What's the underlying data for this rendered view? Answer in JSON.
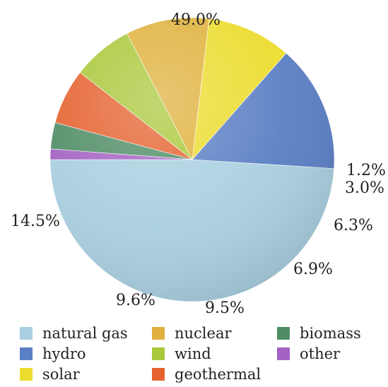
{
  "chart_data": {
    "type": "pie",
    "start": "9 o'clock",
    "direction": "counter-clockwise",
    "slices": [
      {
        "label": "natural gas",
        "value": 49.0,
        "pct_label": "49.0%",
        "color": "#a9cfe0"
      },
      {
        "label": "hydro",
        "value": 14.5,
        "pct_label": "14.5%",
        "color": "#5b7fc4"
      },
      {
        "label": "solar",
        "value": 9.6,
        "pct_label": "9.6%",
        "color": "#ecdc2e"
      },
      {
        "label": "nuclear",
        "value": 9.5,
        "pct_label": "9.5%",
        "color": "#dfb13c"
      },
      {
        "label": "wind",
        "value": 6.9,
        "pct_label": "6.9%",
        "color": "#a9c83a"
      },
      {
        "label": "geothermal",
        "value": 6.3,
        "pct_label": "6.3%",
        "color": "#e5622f"
      },
      {
        "label": "biomass",
        "value": 3.0,
        "pct_label": "3.0%",
        "color": "#4f8d66"
      },
      {
        "label": "other",
        "value": 1.2,
        "pct_label": "1.2%",
        "color": "#a462c3"
      }
    ],
    "legend": {
      "position": "bottom",
      "items": [
        {
          "label": "natural gas",
          "color": "#a9cfe0"
        },
        {
          "label": "nuclear",
          "color": "#dfb13c"
        },
        {
          "label": "biomass",
          "color": "#4f8d66"
        },
        {
          "label": "hydro",
          "color": "#5b7fc4"
        },
        {
          "label": "wind",
          "color": "#a9c83a"
        },
        {
          "label": "other",
          "color": "#a462c3"
        },
        {
          "label": "solar",
          "color": "#ecdc2e"
        },
        {
          "label": "geothermal",
          "color": "#e5622f"
        }
      ]
    }
  }
}
